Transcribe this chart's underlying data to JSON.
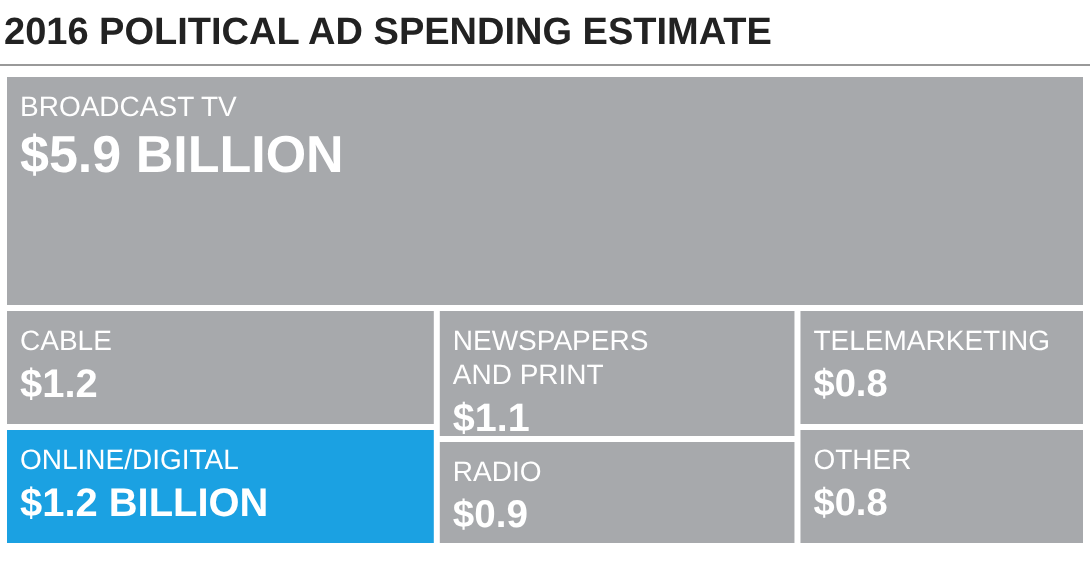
{
  "chart_data": {
    "type": "other",
    "title": "2016 POLITICAL AD SPENDING ESTIMATE",
    "categories": [
      "BROADCAST TV",
      "CABLE",
      "NEWSPAPERS AND PRINT",
      "TELEMARKETING",
      "ONLINE/DIGITAL",
      "RADIO",
      "OTHER"
    ],
    "values": [
      5.9,
      1.2,
      1.1,
      0.8,
      1.2,
      0.9,
      0.8
    ],
    "value_labels": [
      "$5.9 BILLION",
      "$1.2",
      "$1.1",
      "$0.8",
      "$1.2 BILLION",
      "$0.9",
      "$0.8"
    ],
    "colors": [
      "#a7a9ac",
      "#a7a9ac",
      "#a7a9ac",
      "#a7a9ac",
      "#1ba1e2",
      "#a7a9ac",
      "#a7a9ac"
    ]
  }
}
